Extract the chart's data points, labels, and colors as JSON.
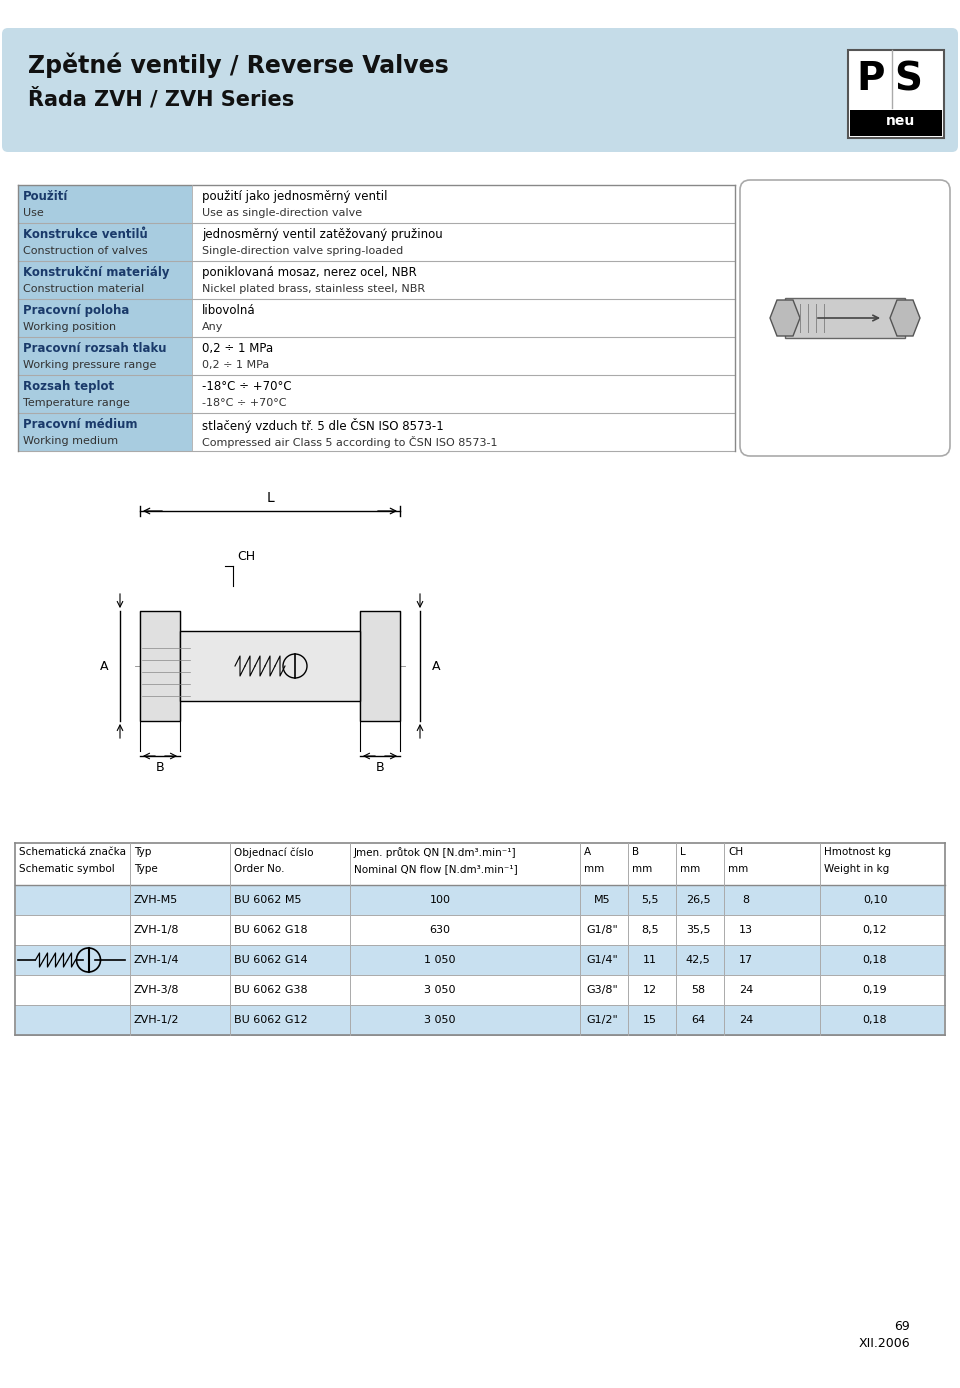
{
  "title_line1": "Zpětné ventily / Reverse Valves",
  "title_line2": "Řada ZVH / ZVH Series",
  "header_bg": "#c5dce8",
  "page_bg": "#ffffff",
  "table1_rows": [
    {
      "label_cz": "Použití",
      "label_en": "Use",
      "value_cz": "použití jako jednosměrný ventil",
      "value_en": "Use as single-direction valve"
    },
    {
      "label_cz": "Konstrukce ventilů",
      "label_en": "Construction of valves",
      "value_cz": "jednosměrný ventil zatěžovaný pružinou",
      "value_en": "Single-direction valve spring-loaded"
    },
    {
      "label_cz": "Konstrukční materiály",
      "label_en": "Construction material",
      "value_cz": "poniklovaná mosaz, nerez ocel, NBR",
      "value_en": "Nickel plated brass, stainless steel, NBR"
    },
    {
      "label_cz": "Pracovní poloha",
      "label_en": "Working position",
      "value_cz": "libovolná",
      "value_en": "Any"
    },
    {
      "label_cz": "Pracovní rozsah tlaku",
      "label_en": "Working pressure range",
      "value_cz": "0,2 ÷ 1 MPa",
      "value_en": "0,2 ÷ 1 MPa"
    },
    {
      "label_cz": "Rozsah teplot",
      "label_en": "Temperature range",
      "value_cz": "-18°C ÷ +70°C",
      "value_en": "-18°C ÷ +70°C"
    },
    {
      "label_cz": "Pracovní médium",
      "label_en": "Working medium",
      "value_cz": "stlačený vzduch tř. 5 dle ČSN ISO 8573-1",
      "value_en": "Compressed air Class 5 according to ČSN ISO 8573-1"
    }
  ],
  "table2_cols_cz": [
    "Schematická značka",
    "Typ",
    "Objednací číslo",
    "Jmen. průtok QN [N.dm³.min⁻¹]",
    "A",
    "B",
    "L",
    "CH",
    "Hmotnost kg"
  ],
  "table2_cols_en": [
    "Schematic symbol",
    "Type",
    "Order No.",
    "Nominal QN flow [N.dm³.min⁻¹]",
    "mm",
    "mm",
    "mm",
    "mm",
    "Weight in kg"
  ],
  "table2_rows": [
    [
      "ZVH-M5",
      "BU 6062 M5",
      "100",
      "M5",
      "5,5",
      "26,5",
      "8",
      "0,10"
    ],
    [
      "ZVH-1/8",
      "BU 6062 G18",
      "630",
      "G1/8\"",
      "8,5",
      "35,5",
      "13",
      "0,12"
    ],
    [
      "ZVH-1/4",
      "BU 6062 G14",
      "1 050",
      "G1/4\"",
      "11",
      "42,5",
      "17",
      "0,18"
    ],
    [
      "ZVH-3/8",
      "BU 6062 G38",
      "3 050",
      "G3/8\"",
      "12",
      "58",
      "24",
      "0,19"
    ],
    [
      "ZVH-1/2",
      "BU 6062 G12",
      "3 050",
      "G1/2\"",
      "15",
      "64",
      "24",
      "0,18"
    ]
  ],
  "row_hl_color": "#c8e0f0",
  "row_alt_color": "#e0f0f8",
  "label_bg_color": "#a8cce0",
  "label_text_color": "#1a3a6a",
  "border_color": "#888888",
  "thin_border": "#aaaaaa"
}
